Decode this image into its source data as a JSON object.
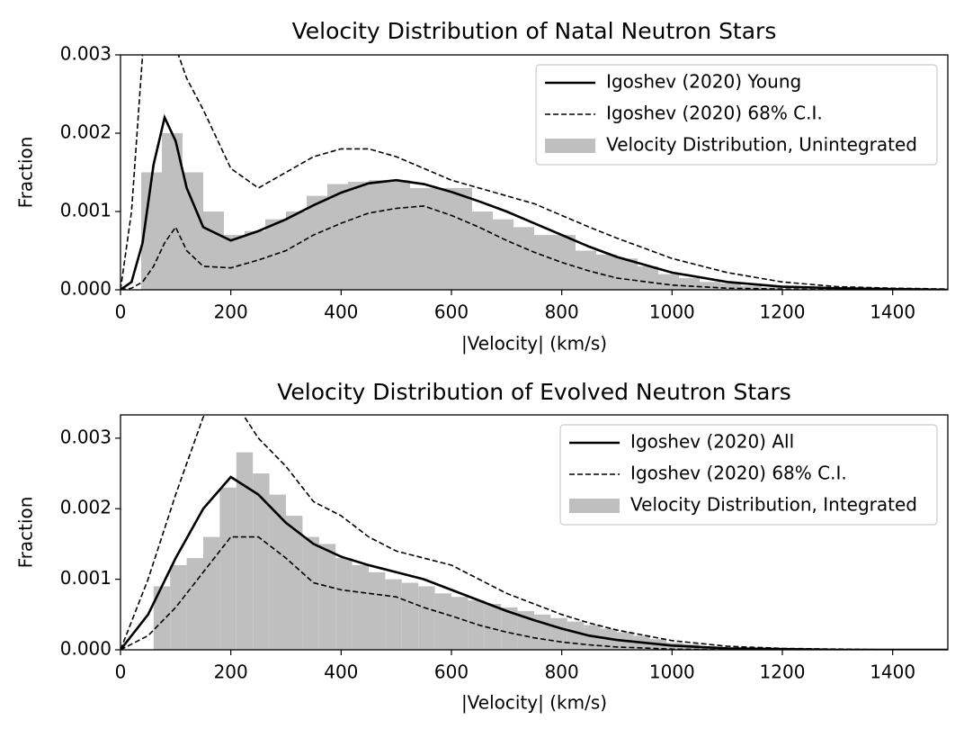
{
  "chart_data": [
    {
      "type": "histogram",
      "title": "Velocity Distribution of Natal Neutron Stars",
      "x_label": "|Velocity| (km/s)",
      "y_label": "Fraction",
      "xlim": [
        0,
        1500
      ],
      "ylim": [
        0,
        0.003
      ],
      "xticks": [
        0,
        200,
        400,
        600,
        800,
        1000,
        1200,
        1400
      ],
      "yticks": [
        {
          "value": 0,
          "label": "0.000"
        },
        {
          "value": 0.001,
          "label": "0.001"
        },
        {
          "value": 0.002,
          "label": "0.002"
        },
        {
          "value": 0.003,
          "label": "0.003"
        }
      ],
      "legend": "upper right",
      "histogram": {
        "name": "Velocity Distribution, Unintegrated",
        "color": "#bfbfbf",
        "bins": [
          37.5,
          75,
          112.5,
          150,
          187.5,
          225,
          262.5,
          300,
          337.5,
          375,
          412.5,
          450,
          487.5,
          525,
          562.5,
          600,
          637.5,
          675,
          712.5,
          750,
          787.5,
          825,
          862.5,
          900,
          937.5,
          975,
          1012.5,
          1050,
          1087.5,
          1125,
          1162.5,
          1200
        ],
        "counts": [
          0.0015,
          0.002,
          0.0015,
          0.001,
          0.0007,
          0.00075,
          0.0009,
          0.001,
          0.0012,
          0.00135,
          0.00138,
          0.0014,
          0.0014,
          0.0013,
          0.0013,
          0.0013,
          0.001,
          0.0009,
          0.0008,
          0.0007,
          0.0007,
          0.0005,
          0.00045,
          0.0004,
          0.0003,
          0.0002,
          0.00015,
          0.0001,
          8e-05,
          5e-05,
          3e-05
        ]
      },
      "x": [
        0,
        20,
        40,
        60,
        80,
        100,
        120,
        150,
        200,
        250,
        300,
        350,
        400,
        450,
        500,
        550,
        600,
        650,
        700,
        750,
        800,
        850,
        900,
        1000,
        1100,
        1200,
        1300,
        1400,
        1500
      ],
      "series": [
        {
          "name": "Igoshev (2020) Young",
          "color": "#000000",
          "style": "solid",
          "values": [
            0,
            0.0001,
            0.0006,
            0.0016,
            0.0022,
            0.0019,
            0.0013,
            0.0008,
            0.00063,
            0.00075,
            0.0009,
            0.00108,
            0.00124,
            0.00136,
            0.0014,
            0.00135,
            0.00125,
            0.00113,
            0.001,
            0.00085,
            0.0007,
            0.00055,
            0.00042,
            0.00022,
            0.0001,
            4e-05,
            2e-05,
            1e-05,
            0
          ]
        },
        {
          "name": "Igoshev (2020) 68% C.I.",
          "color": "#000000",
          "style": "dashed",
          "upper": [
            0,
            0.001,
            0.003,
            0.005,
            0.005,
            0.0031,
            0.0027,
            0.0023,
            0.00155,
            0.0013,
            0.0015,
            0.0017,
            0.0018,
            0.0018,
            0.0017,
            0.00155,
            0.0014,
            0.0013,
            0.0012,
            0.0011,
            0.00095,
            0.0008,
            0.00066,
            0.0004,
            0.00022,
            0.0001,
            4e-05,
            2e-05,
            1e-05
          ],
          "lower": [
            0,
            2e-05,
            0.0001,
            0.0003,
            0.0006,
            0.0008,
            0.0005,
            0.0003,
            0.00028,
            0.00038,
            0.0005,
            0.0007,
            0.00085,
            0.00098,
            0.00104,
            0.00107,
            0.00095,
            0.0008,
            0.00063,
            0.00048,
            0.00035,
            0.00024,
            0.00015,
            6e-05,
            2e-05,
            1e-05,
            0,
            0,
            0
          ]
        }
      ]
    },
    {
      "type": "histogram",
      "title": "Velocity Distribution of Evolved Neutron Stars",
      "x_label": "|Velocity| (km/s)",
      "y_label": "Fraction",
      "xlim": [
        0,
        1500
      ],
      "ylim": [
        0,
        0.00333
      ],
      "xticks": [
        0,
        200,
        400,
        600,
        800,
        1000,
        1200,
        1400
      ],
      "yticks": [
        {
          "value": 0,
          "label": "0.000"
        },
        {
          "value": 0.001,
          "label": "0.001"
        },
        {
          "value": 0.002,
          "label": "0.002"
        },
        {
          "value": 0.003,
          "label": "0.003"
        }
      ],
      "legend": "upper right",
      "histogram": {
        "name": "Velocity Distribution, Integrated",
        "color": "#bfbfbf",
        "bins": [
          60,
          90,
          120,
          150,
          180,
          210,
          240,
          270,
          300,
          330,
          360,
          390,
          420,
          450,
          480,
          510,
          540,
          570,
          600,
          630,
          660,
          690,
          720,
          750,
          780,
          810,
          840,
          870,
          900,
          930,
          960,
          990,
          1020,
          1050,
          1080
        ],
        "counts": [
          0.0009,
          0.0012,
          0.0013,
          0.0016,
          0.0023,
          0.0028,
          0.0025,
          0.0022,
          0.0019,
          0.0016,
          0.0015,
          0.0013,
          0.0012,
          0.0011,
          0.001,
          0.00095,
          0.0009,
          0.0008,
          0.00075,
          0.0007,
          0.00065,
          0.0006,
          0.00055,
          0.0005,
          0.00045,
          0.0004,
          0.00035,
          0.0003,
          0.00025,
          0.0002,
          0.00015,
          0.0001,
          8e-05,
          5e-05
        ]
      },
      "x": [
        0,
        50,
        100,
        150,
        200,
        250,
        300,
        350,
        400,
        450,
        500,
        550,
        600,
        650,
        700,
        750,
        800,
        850,
        900,
        1000,
        1100,
        1200,
        1300,
        1400,
        1500
      ],
      "series": [
        {
          "name": "Igoshev (2020) All",
          "color": "#000000",
          "style": "solid",
          "values": [
            0,
            0.0005,
            0.0013,
            0.002,
            0.00245,
            0.0022,
            0.0018,
            0.0015,
            0.00132,
            0.0012,
            0.0011,
            0.001,
            0.00085,
            0.0007,
            0.00055,
            0.00042,
            0.0003,
            0.0002,
            0.00014,
            6e-05,
            2e-05,
            1e-05,
            0,
            0,
            0
          ]
        },
        {
          "name": "Igoshev (2020) 68% C.I.",
          "color": "#000000",
          "style": "dashed",
          "upper": [
            0,
            0.001,
            0.0022,
            0.0033,
            0.0036,
            0.003,
            0.0026,
            0.0021,
            0.0019,
            0.0016,
            0.0014,
            0.0013,
            0.0012,
            0.001,
            0.0008,
            0.00065,
            0.0005,
            0.00038,
            0.00028,
            0.00013,
            5e-05,
            2e-05,
            1e-05,
            0,
            0
          ],
          "lower": [
            0,
            0.0002,
            0.0006,
            0.0011,
            0.0016,
            0.0016,
            0.0013,
            0.00095,
            0.00085,
            0.0008,
            0.00075,
            0.0006,
            0.00048,
            0.00035,
            0.00025,
            0.00017,
            0.00011,
            7e-05,
            4e-05,
            1e-05,
            0,
            0,
            0,
            0,
            0
          ]
        }
      ]
    }
  ]
}
